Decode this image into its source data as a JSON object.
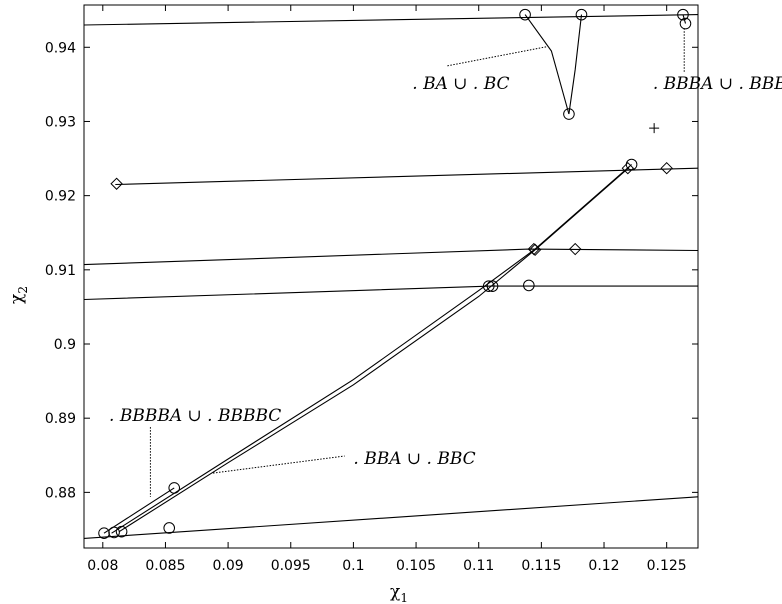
{
  "chart_data": {
    "type": "line",
    "title": "",
    "xlabel": "χ",
    "xlabel_sub": "1",
    "ylabel": "χ",
    "ylabel_sub": "2",
    "xlim": [
      0.0785,
      0.1275
    ],
    "ylim": [
      0.8725,
      0.9457
    ],
    "grid": false,
    "legend": "none",
    "x_ticks": [
      0.08,
      0.085,
      0.09,
      0.095,
      0.1,
      0.105,
      0.11,
      0.115,
      0.12,
      0.125
    ],
    "x_tick_labels": [
      "0.08",
      "0.085",
      "0.09",
      "0.095",
      "0.1",
      "0.105",
      "0.11",
      "0.115",
      "0.12",
      "0.125"
    ],
    "y_ticks": [
      0.88,
      0.89,
      0.9,
      0.91,
      0.92,
      0.93,
      0.94
    ],
    "y_tick_labels": [
      "0.88",
      "0.89",
      "0.9",
      "0.91",
      "0.92",
      "0.93",
      "0.94"
    ],
    "series": [
      {
        "values": [
          [
            0.0785,
            0.943
          ],
          [
            0.1275,
            0.9444
          ]
        ]
      },
      {
        "values": [
          [
            0.081,
            0.9215
          ],
          [
            0.1275,
            0.9237
          ]
        ]
      },
      {
        "values": [
          [
            0.0785,
            0.9107
          ],
          [
            0.114,
            0.9128
          ],
          [
            0.1275,
            0.9126
          ]
        ]
      },
      {
        "values": [
          [
            0.0785,
            0.906
          ],
          [
            0.111,
            0.9078
          ],
          [
            0.1275,
            0.9078
          ]
        ]
      },
      {
        "values": [
          [
            0.0785,
            0.8738
          ],
          [
            0.1275,
            0.8794
          ]
        ]
      },
      {
        "values": [
          [
            0.0813,
            0.8747
          ],
          [
            0.09,
            0.884
          ],
          [
            0.1,
            0.8945
          ],
          [
            0.11,
            0.9064
          ],
          [
            0.1145,
            0.9127
          ],
          [
            0.122,
            0.9238
          ]
        ]
      },
      {
        "values": [
          [
            0.0807,
            0.8745
          ],
          [
            0.09,
            0.8845
          ],
          [
            0.1,
            0.8952
          ],
          [
            0.11,
            0.9072
          ],
          [
            0.1145,
            0.9128
          ],
          [
            0.1222,
            0.9242
          ]
        ]
      },
      {
        "values": [
          [
            0.0801,
            0.8745
          ],
          [
            0.0857,
            0.8806
          ]
        ]
      },
      {
        "values": [
          [
            0.1137,
            0.9444
          ],
          [
            0.1158,
            0.9395
          ],
          [
            0.1172,
            0.931
          ]
        ]
      },
      {
        "values": [
          [
            0.1182,
            0.9444
          ],
          [
            0.1177,
            0.937
          ],
          [
            0.1172,
            0.931
          ]
        ]
      },
      {
        "values": [
          [
            0.1263,
            0.9444
          ],
          [
            0.1265,
            0.9432
          ]
        ]
      }
    ],
    "markers": {
      "circles": [
        [
          0.1137,
          0.9444
        ],
        [
          0.1182,
          0.9444
        ],
        [
          0.1172,
          0.931
        ],
        [
          0.1263,
          0.9444
        ],
        [
          0.1265,
          0.9432
        ],
        [
          0.1222,
          0.9242
        ],
        [
          0.1108,
          0.9078
        ],
        [
          0.1111,
          0.9078
        ],
        [
          0.114,
          0.9079
        ],
        [
          0.0801,
          0.8745
        ],
        [
          0.0809,
          0.8746
        ],
        [
          0.0815,
          0.8747
        ],
        [
          0.0853,
          0.8752
        ],
        [
          0.0857,
          0.8806
        ]
      ],
      "diamonds": [
        [
          0.0811,
          0.9216
        ],
        [
          0.1219,
          0.9237
        ],
        [
          0.125,
          0.9237
        ],
        [
          0.1144,
          0.9128
        ],
        [
          0.1145,
          0.9127
        ],
        [
          0.1177,
          0.9128
        ]
      ],
      "plus": [
        [
          0.124,
          0.9291
        ]
      ]
    },
    "annotations": [
      {
        "text": ". BA ∪ . BC",
        "label_at": [
          0.1047,
          0.9344
        ],
        "leader": [
          [
            0.1075,
            0.9375
          ],
          [
            0.1155,
            0.9401
          ]
        ],
        "dash": "dot"
      },
      {
        "text": ". BBBA ∪ . BBBC",
        "label_at": [
          0.1239,
          0.9344
        ],
        "leader": [
          [
            0.1264,
            0.9367
          ],
          [
            0.1264,
            0.9426
          ]
        ],
        "dash": "dot"
      },
      {
        "text": ". BBBBA ∪ . BBBBC",
        "label_at": [
          0.0805,
          0.8896
        ],
        "leader": [
          [
            0.0838,
            0.8888
          ],
          [
            0.0838,
            0.8794
          ]
        ],
        "dash": "dot"
      },
      {
        "text": ". BBA ∪ . BBC",
        "label_at": [
          0.1,
          0.8838
        ],
        "leader": [
          [
            0.0888,
            0.8826
          ],
          [
            0.0993,
            0.8849
          ]
        ],
        "dash": "dot"
      }
    ]
  }
}
